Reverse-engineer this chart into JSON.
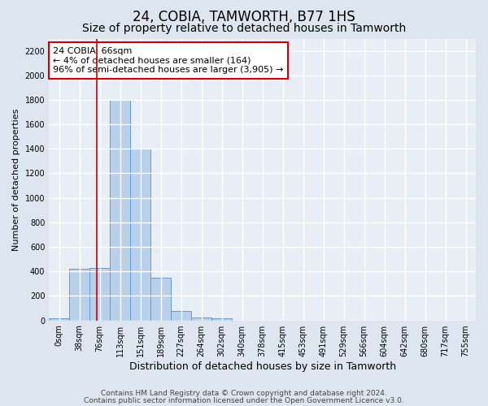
{
  "title": "24, COBIA, TAMWORTH, B77 1HS",
  "subtitle": "Size of property relative to detached houses in Tamworth",
  "xlabel": "Distribution of detached houses by size in Tamworth",
  "ylabel": "Number of detached properties",
  "bar_labels": [
    "0sqm",
    "38sqm",
    "76sqm",
    "113sqm",
    "151sqm",
    "189sqm",
    "227sqm",
    "264sqm",
    "302sqm",
    "340sqm",
    "378sqm",
    "415sqm",
    "453sqm",
    "491sqm",
    "529sqm",
    "566sqm",
    "604sqm",
    "642sqm",
    "680sqm",
    "717sqm",
    "755sqm"
  ],
  "bar_values": [
    15,
    420,
    430,
    1800,
    1400,
    350,
    80,
    25,
    20,
    0,
    0,
    0,
    0,
    0,
    0,
    0,
    0,
    0,
    0,
    0,
    0
  ],
  "bar_color": "#b8d0ea",
  "bar_edge_color": "#6699cc",
  "ylim": [
    0,
    2300
  ],
  "yticks": [
    0,
    200,
    400,
    600,
    800,
    1000,
    1200,
    1400,
    1600,
    1800,
    2000,
    2200
  ],
  "vline_x": 1.85,
  "vline_color": "#cc0000",
  "annotation_text": "24 COBIA: 66sqm\n← 4% of detached houses are smaller (164)\n96% of semi-detached houses are larger (3,905) →",
  "annotation_box_color": "#ffffff",
  "annotation_box_edge": "#cc0000",
  "footer_line1": "Contains HM Land Registry data © Crown copyright and database right 2024.",
  "footer_line2": "Contains public sector information licensed under the Open Government Licence v3.0.",
  "bg_color": "#dde6f0",
  "plot_bg_color": "#e8eef5",
  "grid_color": "#ffffff",
  "title_fontsize": 12,
  "subtitle_fontsize": 10,
  "tick_fontsize": 7,
  "ylabel_fontsize": 8,
  "xlabel_fontsize": 9,
  "footer_fontsize": 6.5
}
